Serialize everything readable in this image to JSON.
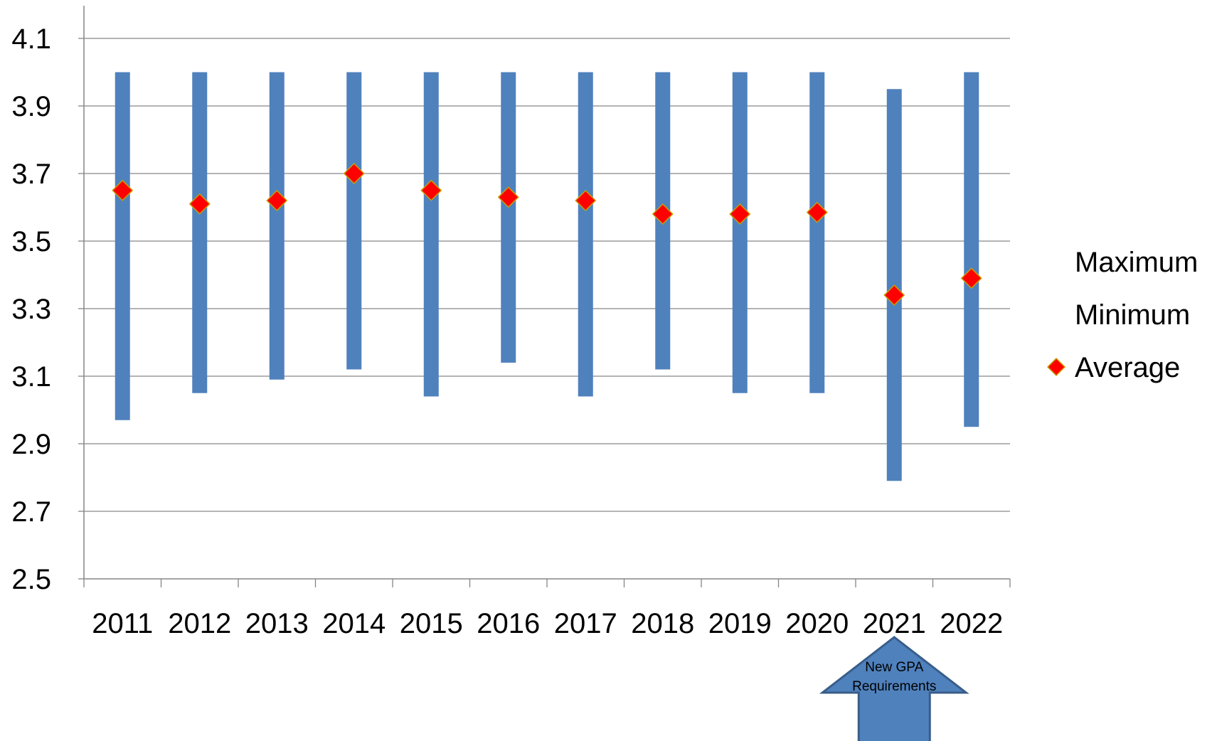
{
  "chart_data": {
    "type": "bar",
    "title": "",
    "xlabel": "",
    "ylabel": "",
    "categories": [
      "2011",
      "2012",
      "2013",
      "2014",
      "2015",
      "2016",
      "2017",
      "2018",
      "2019",
      "2020",
      "2021",
      "2022"
    ],
    "series": [
      {
        "name": "Maximum",
        "values": [
          4.0,
          4.0,
          4.0,
          4.0,
          4.0,
          4.0,
          4.0,
          4.0,
          4.0,
          4.0,
          3.95,
          4.0
        ]
      },
      {
        "name": "Minimum",
        "values": [
          2.97,
          3.05,
          3.09,
          3.12,
          3.04,
          3.14,
          3.04,
          3.12,
          3.05,
          3.05,
          2.79,
          2.95
        ]
      },
      {
        "name": "Average",
        "values": [
          3.65,
          3.61,
          3.62,
          3.7,
          3.65,
          3.63,
          3.62,
          3.58,
          3.58,
          3.585,
          3.34,
          3.39
        ]
      }
    ],
    "ylim": [
      2.5,
      4.1
    ],
    "yticks": [
      "2.5",
      "2.7",
      "2.9",
      "3.1",
      "3.3",
      "3.5",
      "3.7",
      "3.9",
      "4.1"
    ],
    "grid": true,
    "legend": {
      "position": "right",
      "entries": [
        "Maximum",
        "Minimum",
        "Average"
      ]
    },
    "colors": {
      "bar": "#4f81bd",
      "marker": "#ff0000",
      "marker_edge": "#c8a000",
      "grid": "#868686",
      "axis": "#868686",
      "callout_fill": "#4f81bd",
      "callout_edge": "#385d8a"
    },
    "annotation": {
      "text_line1": "New GPA",
      "text_line2": "Requirements",
      "category": "2021"
    }
  }
}
